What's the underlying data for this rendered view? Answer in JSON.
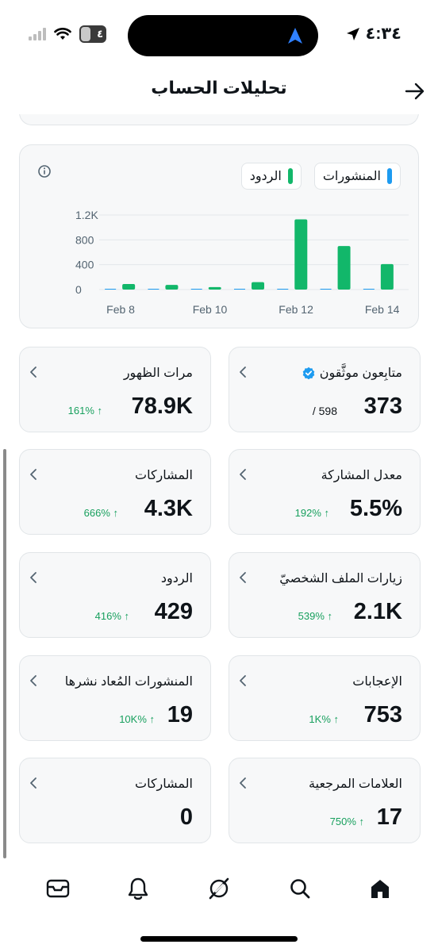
{
  "status_bar": {
    "time": "٤:٣٤",
    "battery_level": "٤"
  },
  "header": {
    "title": "تحليلات الحساب"
  },
  "chart": {
    "legend": [
      {
        "label": "المنشورات",
        "color": "#1d9bf0"
      },
      {
        "label": "الردود",
        "color": "#12b76a"
      }
    ]
  },
  "chart_data": {
    "type": "bar",
    "categories": [
      "Feb 8",
      "Feb 9",
      "Feb 10",
      "Feb 11",
      "Feb 12",
      "Feb 13",
      "Feb 14"
    ],
    "x_tick_labels": [
      "Feb 8",
      "Feb 10",
      "Feb 12",
      "Feb 14"
    ],
    "y_tick_labels": [
      "0",
      "400",
      "800",
      "1.2K"
    ],
    "ylim": [
      0,
      1200
    ],
    "grid": true,
    "series": [
      {
        "name": "المنشورات",
        "color": "#1d9bf0",
        "values": [
          0,
          0,
          0,
          0,
          0,
          0,
          0
        ]
      },
      {
        "name": "الردود",
        "color": "#12b76a",
        "values": [
          90,
          75,
          40,
          120,
          1130,
          700,
          410
        ]
      }
    ]
  },
  "metrics": [
    {
      "id": "verified-followers",
      "label": "متابِعون موثَّقون",
      "value": "373",
      "sub": "/ 598",
      "verified": true
    },
    {
      "id": "impressions",
      "label": "مرات الظهور",
      "value": "78.9K",
      "change": "161% ↑"
    },
    {
      "id": "engagement-rate",
      "label": "معدل المشاركة",
      "value": "5.5%",
      "change": "192% ↑"
    },
    {
      "id": "engagements",
      "label": "المشاركات",
      "value": "4.3K",
      "change": "666% ↑"
    },
    {
      "id": "profile-visits",
      "label": "زيارات الملف الشخصيّ",
      "value": "2.1K",
      "change": "539% ↑"
    },
    {
      "id": "replies",
      "label": "الردود",
      "value": "429",
      "change": "416% ↑"
    },
    {
      "id": "likes",
      "label": "الإعجابات",
      "value": "753",
      "change": "1K% ↑"
    },
    {
      "id": "reposts",
      "label": "المنشورات المُعاد نشرها",
      "value": "19",
      "change": "10K% ↑"
    },
    {
      "id": "bookmarks",
      "label": "العلامات المرجعية",
      "value": "17",
      "change": "750% ↑"
    },
    {
      "id": "shares",
      "label": "المشاركات",
      "value": "0"
    }
  ],
  "nav": [
    {
      "id": "home",
      "icon": "home-icon"
    },
    {
      "id": "search",
      "icon": "search-icon"
    },
    {
      "id": "grok",
      "icon": "grok-icon"
    },
    {
      "id": "notifications",
      "icon": "bell-icon"
    },
    {
      "id": "messages",
      "icon": "mail-icon"
    }
  ]
}
